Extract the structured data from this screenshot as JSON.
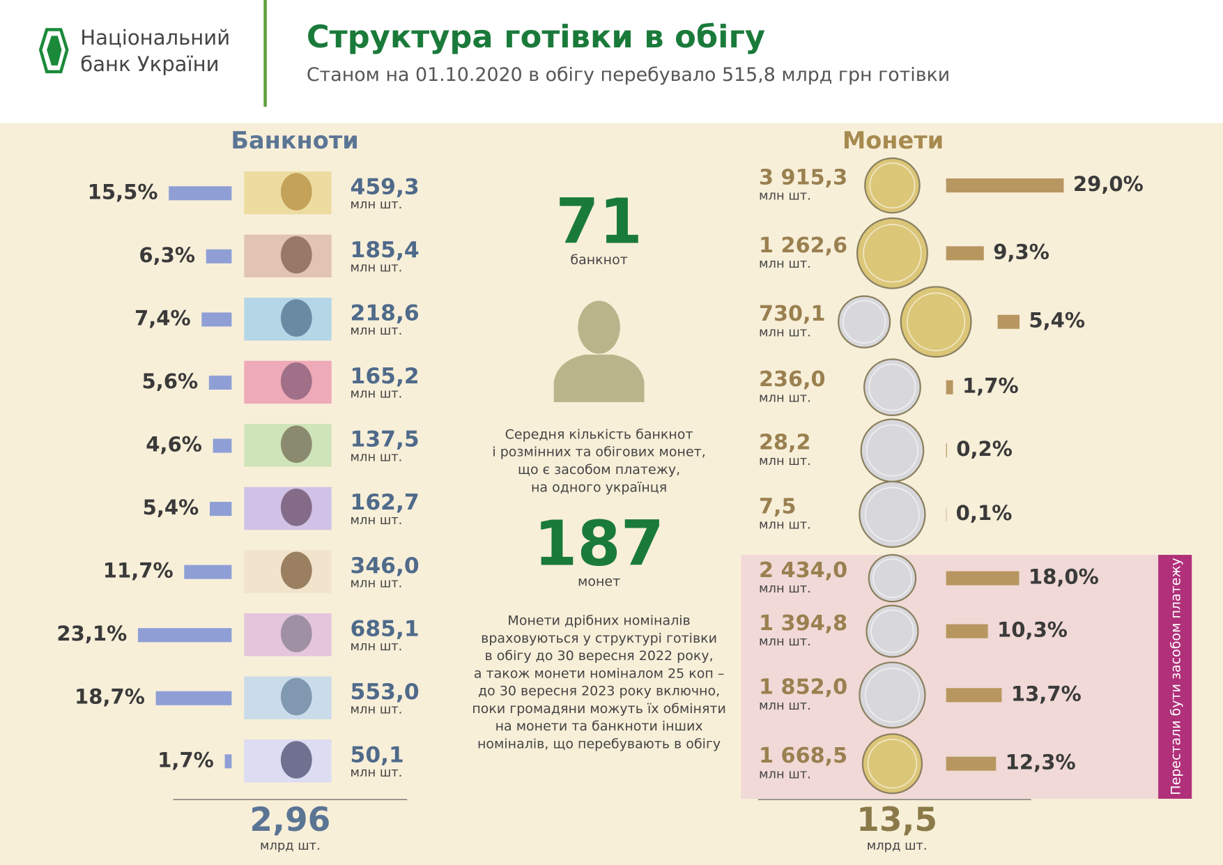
{
  "header": {
    "logo": [
      "Національний",
      "банк України"
    ],
    "title": "Структура готівки в обігу",
    "subtitle": "Станом на 01.10.2020 в обігу перебувало 515,8 млрд грн готівки"
  },
  "banknotes": {
    "title": "Банкноти",
    "items": [
      {
        "share": 15.5,
        "share_label": "15,5%",
        "count": "459,3",
        "unit": "млн шт."
      },
      {
        "share": 6.3,
        "share_label": "6,3%",
        "count": "185,4",
        "unit": "млн шт."
      },
      {
        "share": 7.4,
        "share_label": "7,4%",
        "count": "218,6",
        "unit": "млн шт."
      },
      {
        "share": 5.6,
        "share_label": "5,6%",
        "count": "165,2",
        "unit": "млн шт."
      },
      {
        "share": 4.6,
        "share_label": "4,6%",
        "count": "137,5",
        "unit": "млн шт."
      },
      {
        "share": 5.4,
        "share_label": "5,4%",
        "count": "162,7",
        "unit": "млн шт."
      },
      {
        "share": 11.7,
        "share_label": "11,7%",
        "count": "346,0",
        "unit": "млн шт."
      },
      {
        "share": 23.1,
        "share_label": "23,1%",
        "count": "685,1",
        "unit": "млн шт."
      },
      {
        "share": 18.7,
        "share_label": "18,7%",
        "count": "553,0",
        "unit": "млн шт."
      },
      {
        "share": 1.7,
        "share_label": "1,7%",
        "count": "50,1",
        "unit": "млн шт."
      }
    ],
    "total": "2,96",
    "total_unit": "млрд шт."
  },
  "coins": {
    "title": "Монети",
    "items": [
      {
        "share": 29.0,
        "share_label": "29,0%",
        "count": "3 915,3",
        "unit": "млн шт."
      },
      {
        "share": 9.3,
        "share_label": "9,3%",
        "count": "1 262,6",
        "unit": "млн шт."
      },
      {
        "share": 5.4,
        "share_label": "5,4%",
        "count": "730,1",
        "unit": "млн шт."
      },
      {
        "share": 1.7,
        "share_label": "1,7%",
        "count": "236,0",
        "unit": "млн шт."
      },
      {
        "share": 0.2,
        "share_label": "0,2%",
        "count": "28,2",
        "unit": "млн шт."
      },
      {
        "share": 0.1,
        "share_label": "0,1%",
        "count": "7,5",
        "unit": "млн шт."
      }
    ],
    "withdrawn": {
      "label": "Перестали бути засобом платежу",
      "items": [
        {
          "share": 18.0,
          "share_label": "18,0%",
          "count": "2 434,0",
          "unit": "млн шт."
        },
        {
          "share": 10.3,
          "share_label": "10,3%",
          "count": "1 394,8",
          "unit": "млн шт."
        },
        {
          "share": 13.7,
          "share_label": "13,7%",
          "count": "1 852,0",
          "unit": "млн шт."
        },
        {
          "share": 12.3,
          "share_label": "12,3%",
          "count": "1 668,5",
          "unit": "млн шт."
        }
      ]
    },
    "total": "13,5",
    "total_unit": "млрд шт."
  },
  "center": {
    "notes_per_capita": "71",
    "notes_unit": "банкнот",
    "description": [
      "Середня кількість банкнот",
      "і розмінних та обігових монет,",
      "що є засобом платежу,",
      "на одного українця"
    ],
    "coins_per_capita": "187",
    "coins_unit": "монет",
    "note": [
      "Монети дрібних номіналів",
      "враховуються у структурі готівки",
      "в обігу до 30 вересня 2022 року,",
      "а також монети  номіналом 25 коп –",
      "до 30 вересня 2023 року включно,",
      "поки громадяни можуть їх обміняти",
      "на монети та банкноти інших",
      "номіналів, що перебувають в обігу"
    ]
  }
}
